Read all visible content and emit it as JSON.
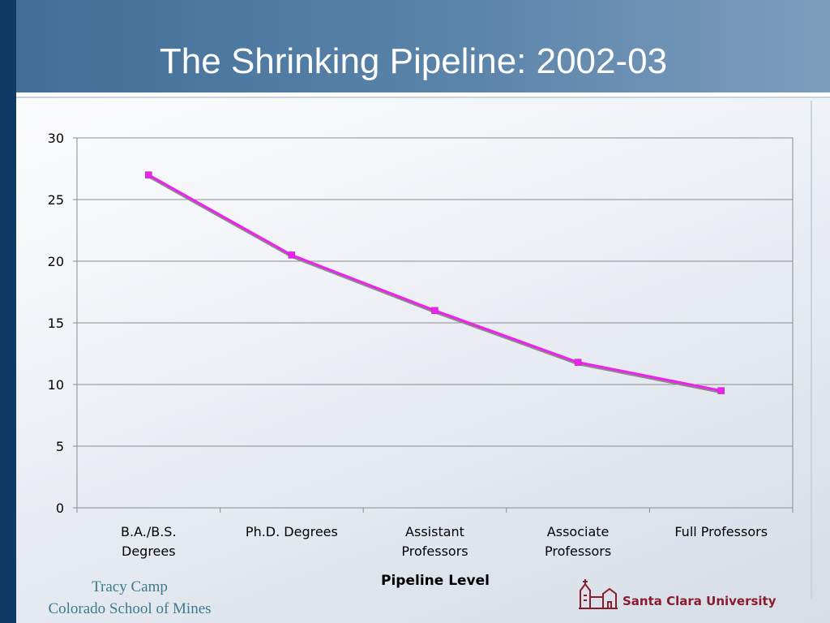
{
  "slide": {
    "title": "The Shrinking Pipeline: 2002-03",
    "footer_name": "Tracy Camp",
    "footer_org": "Colorado School of Mines",
    "logo_text": "Santa Clara University"
  },
  "colors": {
    "header": "#4b7aa3",
    "left_bar": "#0f3a63",
    "series_line": "#ee22ee",
    "series_shadow": "#8a8a8a",
    "logo": "#8b1c2c"
  },
  "chart_data": {
    "type": "line",
    "title": "The Shrinking Pipeline: 2002-03",
    "xlabel": "Pipeline Level",
    "ylabel": "",
    "categories": [
      [
        "B.A./B.S.",
        "Degrees"
      ],
      [
        "Ph.D. Degrees"
      ],
      [
        "Assistant",
        "Professors"
      ],
      [
        "Associate",
        "Professors"
      ],
      [
        "Full Professors"
      ]
    ],
    "series": [
      {
        "values": [
          27,
          20.5,
          16,
          11.8,
          9.5
        ]
      }
    ],
    "ylim": [
      0,
      30
    ],
    "yticks": [
      0,
      5,
      10,
      15,
      20,
      25,
      30
    ],
    "grid": true,
    "legend": "none"
  }
}
